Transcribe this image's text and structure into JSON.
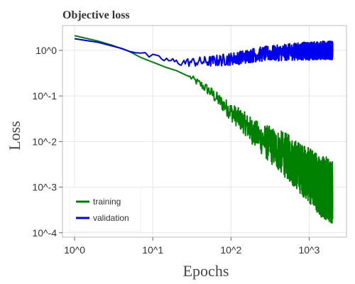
{
  "chart_data": {
    "type": "line",
    "title": "Objective loss",
    "xlabel": "Epochs",
    "ylabel": "Loss",
    "xscale": "log",
    "yscale": "log",
    "xlim": [
      0.7,
      3000
    ],
    "ylim": [
      8e-05,
      3.5
    ],
    "xticks": [
      1,
      10,
      100,
      1000
    ],
    "xtick_labels": [
      "10^0",
      "10^1",
      "10^2",
      "10^3"
    ],
    "yticks": [
      1,
      0.1,
      0.01,
      0.001,
      0.0001
    ],
    "ytick_labels": [
      "10^0",
      "10^-1",
      "10^-2",
      "10^-3",
      "10^-4"
    ],
    "grid": true,
    "legend_position": "bottom-left",
    "x": [
      1,
      2,
      3,
      5,
      7,
      10,
      15,
      20,
      30,
      50,
      70,
      100,
      150,
      200,
      300,
      500,
      700,
      1000,
      1500,
      2000
    ],
    "series": [
      {
        "name": "training",
        "color": "#008000",
        "values": [
          2.1,
          1.6,
          1.3,
          0.95,
          0.7,
          0.55,
          0.42,
          0.36,
          0.26,
          0.14,
          0.08,
          0.045,
          0.025,
          0.015,
          0.009,
          0.005,
          0.003,
          0.0018,
          0.001,
          0.0008
        ],
        "noise_from_epoch": 30,
        "noise_dex": [
          0.02,
          0.02,
          0.02,
          0.02,
          0.02,
          0.02,
          0.02,
          0.02,
          0.06,
          0.12,
          0.15,
          0.2,
          0.25,
          0.3,
          0.4,
          0.5,
          0.55,
          0.6,
          0.7,
          0.7
        ]
      },
      {
        "name": "validation",
        "color": "#0000ee",
        "values": [
          1.8,
          1.5,
          1.25,
          1.0,
          0.85,
          0.72,
          0.62,
          0.55,
          0.55,
          0.57,
          0.6,
          0.65,
          0.72,
          0.8,
          0.85,
          0.9,
          0.95,
          0.97,
          1.0,
          1.0
        ],
        "noise_from_epoch": 5,
        "noise_dex": [
          0.02,
          0.02,
          0.02,
          0.04,
          0.05,
          0.06,
          0.07,
          0.08,
          0.1,
          0.12,
          0.13,
          0.14,
          0.15,
          0.16,
          0.17,
          0.18,
          0.19,
          0.2,
          0.2,
          0.2
        ]
      }
    ]
  }
}
